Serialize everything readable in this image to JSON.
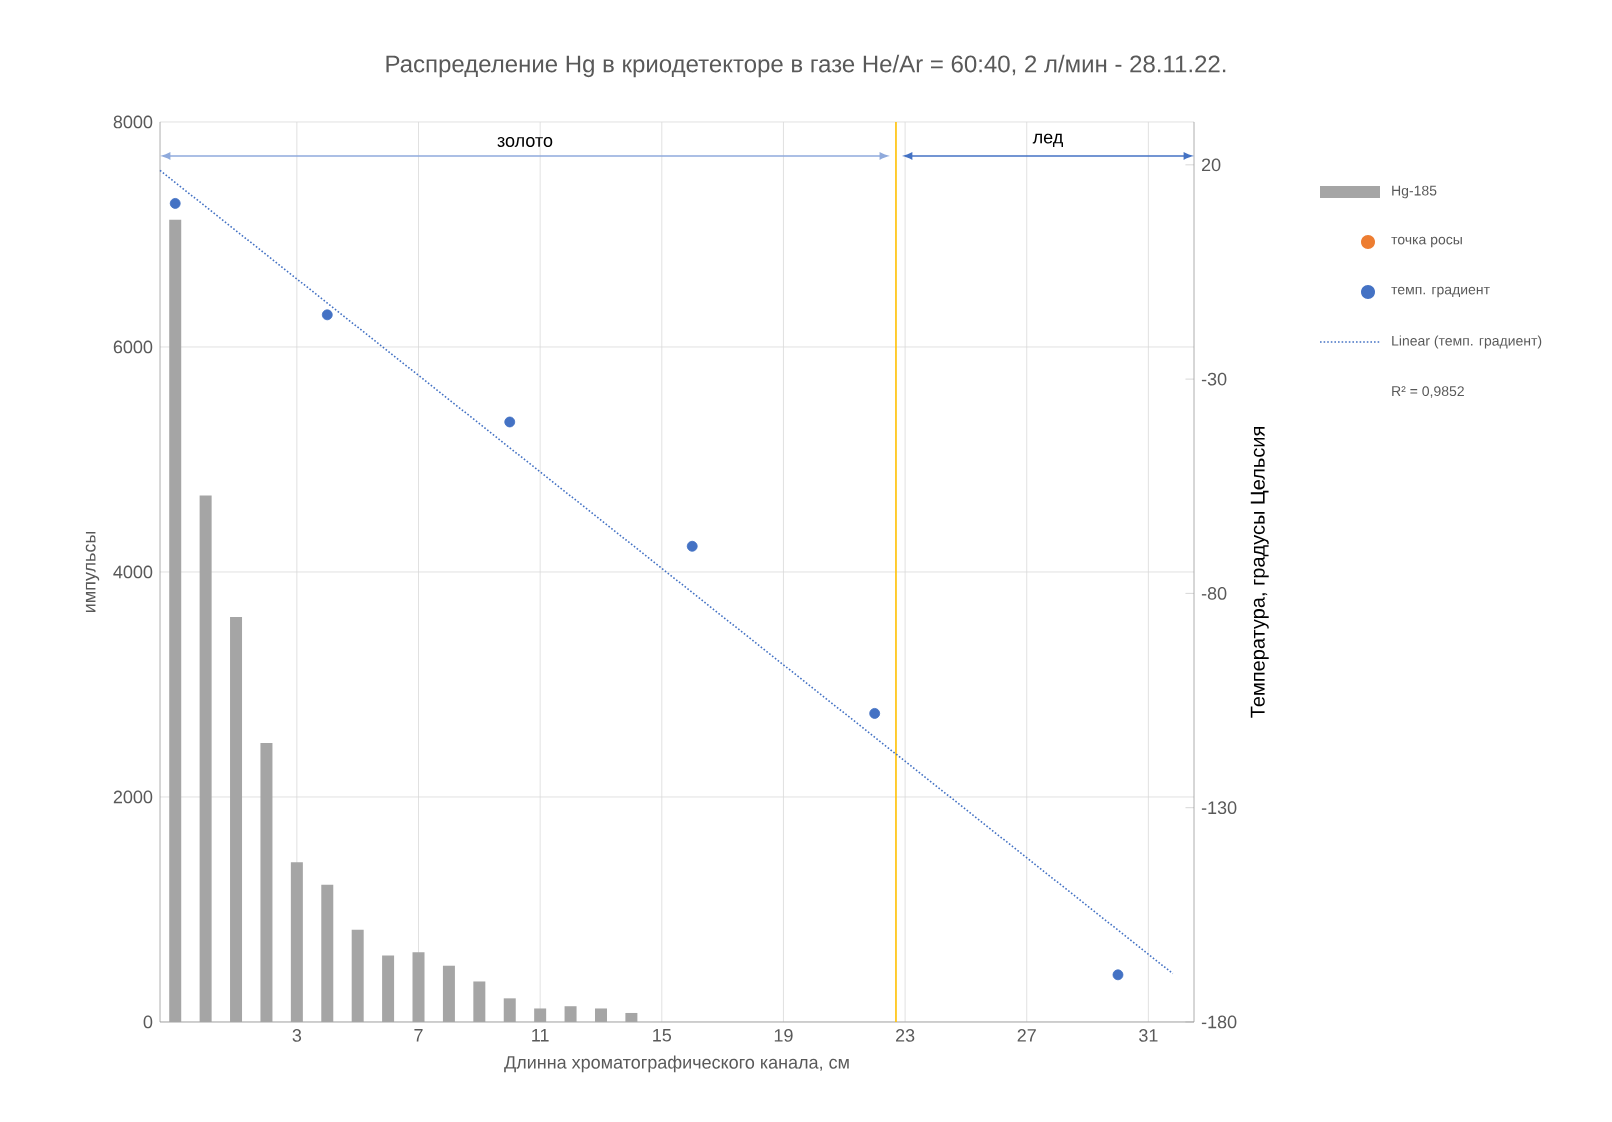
{
  "chart_data": {
    "type": "bar",
    "title": "Распределение Hg в криодетекторе в газе He/Ar = 60:40, 2 л/мин - 28.11.22.",
    "xlabel": "Длинна хроматографического канала, см",
    "ylabel": "импульсы",
    "y2label": "Температура, градусы Цельсия",
    "xlim": [
      -1.5,
      32.5
    ],
    "xticks": [
      3,
      7,
      11,
      15,
      19,
      23,
      27,
      31
    ],
    "ylim": [
      0,
      8000
    ],
    "yticks": [
      0,
      2000,
      4000,
      6000,
      8000
    ],
    "y2lim": [
      -180,
      30
    ],
    "y2ticks": [
      -180,
      -130,
      -80,
      -30,
      20
    ],
    "grid": true,
    "legend": "right",
    "series": [
      {
        "name": "Hg-185",
        "color": "#a5a5a5",
        "x": [
          -1,
          0,
          1,
          2,
          3,
          4,
          5,
          6,
          7,
          8,
          9,
          10,
          11,
          12,
          13,
          14
        ],
        "values": [
          7130,
          4680,
          3600,
          2480,
          1420,
          1220,
          820,
          590,
          620,
          500,
          360,
          210,
          120,
          140,
          120,
          80
        ]
      },
      {
        "name": "точка росы",
        "type": "scatter",
        "color": "#ed7d31",
        "axis": "y2",
        "marker": "circle"
      },
      {
        "name": "темп. градиент",
        "type": "scatter",
        "color": "#4472c4",
        "axis": "y2",
        "marker": "circle",
        "x": [
          -1,
          4,
          10,
          16,
          22,
          30
        ],
        "values": [
          11,
          -15,
          -40,
          -69,
          -108,
          -169
        ]
      },
      {
        "name": "Linear (темп. градиент)",
        "type": "line",
        "color": "#4472c4",
        "axis": "y2",
        "line_style": "dotted",
        "x": [
          -1.5,
          31.8
        ],
        "values": [
          18.7,
          -168.7
        ]
      }
    ],
    "ref_lines": [
      {
        "axis": "x",
        "value": 22.7,
        "color": "#ffc000"
      }
    ],
    "annotations": [
      "золото",
      "лед",
      "R² = 0,9852"
    ]
  }
}
